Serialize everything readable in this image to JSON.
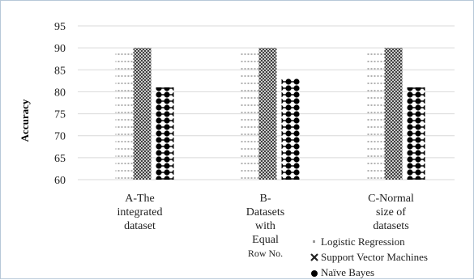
{
  "chart_data": {
    "type": "bar",
    "title": "",
    "xlabel": "",
    "ylabel": "Accuracy",
    "ylim": [
      60,
      95
    ],
    "yticks": [
      60,
      65,
      70,
      75,
      80,
      85,
      90,
      95
    ],
    "grid": true,
    "legend_position": "bottom-right",
    "categories": [
      "A-The integrated dataset",
      "B-Datasets with Equal Row No.",
      "C-Normal size of datasets"
    ],
    "category_label_lines": [
      [
        "A-The",
        "integrated",
        "dataset"
      ],
      [
        "B-",
        "Datasets",
        "with",
        "Equal",
        "Row No."
      ],
      [
        "C-Normal",
        "size of",
        "datasets"
      ]
    ],
    "series": [
      {
        "name": "Logistic Regression",
        "values": [
          90,
          90,
          90
        ],
        "pattern": "dotted",
        "color": "#bbbbbb"
      },
      {
        "name": "Support Vector Machines",
        "values": [
          90,
          90,
          90
        ],
        "pattern": "crosshatch",
        "color": "#555555"
      },
      {
        "name": "Naïve Bayes",
        "values": [
          81,
          83,
          81
        ],
        "pattern": "circles",
        "color": "#000000"
      }
    ]
  }
}
